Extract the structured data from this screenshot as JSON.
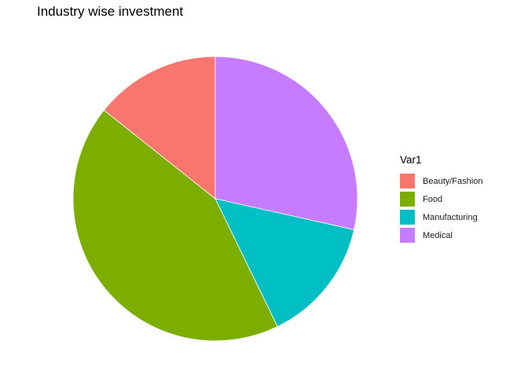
{
  "chart_data": {
    "type": "pie",
    "title": "Industry wise investment",
    "legend_title": "Var1",
    "legend_position": "right",
    "categories": [
      "Beauty/Fashion",
      "Food",
      "Manufacturing",
      "Medical"
    ],
    "values": [
      14.3,
      42.9,
      14.3,
      28.5
    ],
    "colors": [
      "#F8766D",
      "#7CAE00",
      "#00BFC4",
      "#C77CFF"
    ]
  }
}
